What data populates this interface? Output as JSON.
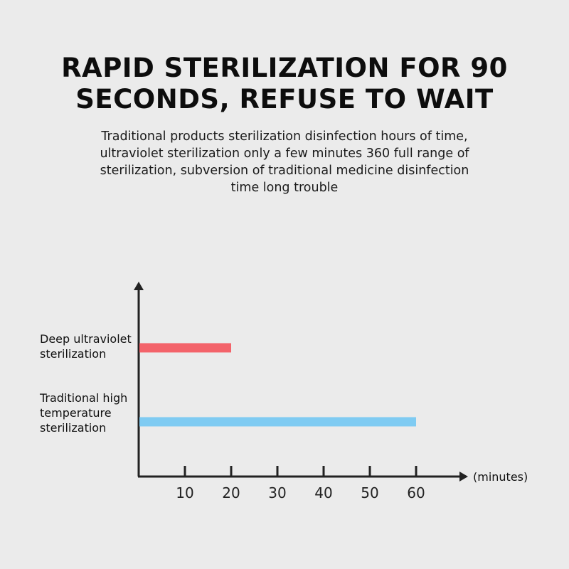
{
  "header": {
    "title_line1": "RAPID STERILIZATION FOR 90",
    "title_line2": "SECONDS, REFUSE TO WAIT",
    "subtitle": "Traditional products sterilization disinfection hours of time, ultraviolet sterilization only a few minutes 360 full range of sterilization, subversion of traditional medicine disinfection time long trouble"
  },
  "chart_data": {
    "type": "bar",
    "orientation": "horizontal",
    "categories": [
      [
        "Deep ultraviolet",
        "sterilization"
      ],
      [
        "Traditional high",
        "temperature",
        "sterilization"
      ]
    ],
    "values": [
      20,
      60
    ],
    "colors": [
      "#f3636a",
      "#7fcbf2"
    ],
    "xlabel": "(minutes)",
    "xticks": [
      10,
      20,
      30,
      40,
      50,
      60
    ],
    "xlim": [
      0,
      70
    ],
    "grid": false
  }
}
